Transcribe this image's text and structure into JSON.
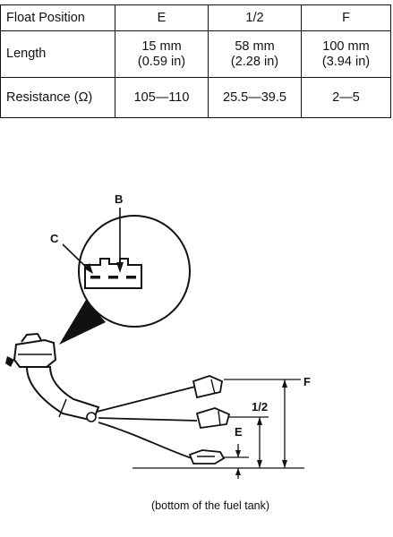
{
  "table": {
    "headers": [
      "Float Position",
      "E",
      "1/2",
      "F"
    ],
    "rows": [
      {
        "label": "Length",
        "cells": [
          {
            "main": "15 mm",
            "sub": "(0.59 in)"
          },
          {
            "main": "58 mm",
            "sub": "(2.28 in)"
          },
          {
            "main": "100 mm",
            "sub": "(3.94 in)"
          }
        ]
      },
      {
        "label": "Resistance (Ω)",
        "cells": [
          {
            "main": "105—110"
          },
          {
            "main": "25.5—39.5"
          },
          {
            "main": "2—5"
          }
        ]
      }
    ]
  },
  "diagram": {
    "labels": {
      "b": "B",
      "c": "C",
      "f": "F",
      "half": "1/2",
      "e": "E"
    },
    "caption": "(bottom of the fuel tank)"
  }
}
